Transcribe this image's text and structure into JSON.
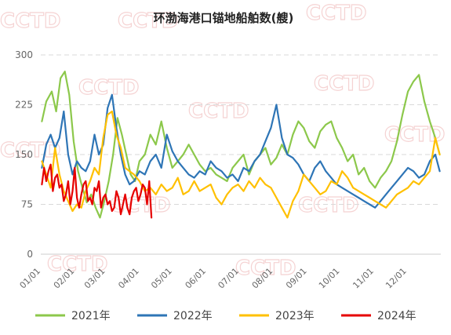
{
  "chart_data": {
    "type": "line",
    "title": "环渤海港口锚地船舶数(艘)",
    "watermark": "CCTD",
    "y_ticks": [
      0,
      75,
      150,
      225,
      300
    ],
    "ylim": [
      0,
      300
    ],
    "x_ticks": [
      "01/01",
      "02/01",
      "03/01",
      "04/01",
      "05/01",
      "06/01",
      "07/01",
      "08/01",
      "09/01",
      "10/01",
      "11/01",
      "12/01"
    ],
    "xlim_days": [
      0,
      365
    ],
    "grid": true,
    "legend_position": "bottom",
    "series": [
      {
        "name": "2021年",
        "color": "#8cc84b",
        "x": [
          1,
          5,
          10,
          14,
          18,
          22,
          26,
          30,
          34,
          38,
          42,
          46,
          50,
          54,
          58,
          62,
          66,
          70,
          74,
          78,
          82,
          86,
          90,
          95,
          100,
          105,
          110,
          115,
          120,
          125,
          130,
          135,
          140,
          145,
          150,
          155,
          160,
          165,
          170,
          175,
          180,
          185,
          190,
          195,
          200,
          205,
          210,
          215,
          220,
          225,
          230,
          235,
          240,
          245,
          250,
          255,
          260,
          265,
          270,
          275,
          280,
          285,
          290,
          295,
          300,
          305,
          310,
          315,
          320,
          325,
          330,
          335,
          340,
          345,
          350,
          355,
          360,
          364
        ],
        "y": [
          200,
          230,
          245,
          215,
          265,
          275,
          240,
          170,
          125,
          100,
          78,
          90,
          70,
          55,
          80,
          110,
          150,
          205,
          180,
          150,
          120,
          110,
          140,
          150,
          180,
          165,
          200,
          160,
          130,
          140,
          150,
          165,
          150,
          135,
          125,
          130,
          120,
          115,
          110,
          130,
          140,
          150,
          120,
          140,
          150,
          160,
          135,
          145,
          165,
          150,
          180,
          200,
          190,
          170,
          160,
          185,
          195,
          200,
          175,
          160,
          140,
          150,
          120,
          130,
          110,
          100,
          115,
          125,
          140,
          170,
          210,
          245,
          260,
          270,
          230,
          200,
          175,
          150
        ]
      },
      {
        "name": "2022年",
        "color": "#2e75b6",
        "x": [
          1,
          5,
          9,
          13,
          17,
          21,
          25,
          29,
          33,
          37,
          41,
          45,
          49,
          53,
          57,
          61,
          65,
          69,
          73,
          77,
          81,
          85,
          90,
          95,
          100,
          105,
          110,
          115,
          120,
          125,
          130,
          135,
          140,
          145,
          150,
          155,
          160,
          165,
          170,
          175,
          180,
          185,
          190,
          195,
          200,
          205,
          210,
          215,
          220,
          225,
          230,
          235,
          240,
          245,
          250,
          255,
          260,
          265,
          270,
          275,
          280,
          285,
          290,
          295,
          300,
          305,
          310,
          315,
          320,
          325,
          330,
          335,
          340,
          345,
          350,
          355,
          360,
          364
        ],
        "y": [
          130,
          165,
          180,
          160,
          175,
          215,
          150,
          120,
          140,
          130,
          125,
          140,
          180,
          150,
          165,
          220,
          240,
          190,
          150,
          120,
          105,
          110,
          125,
          120,
          140,
          150,
          130,
          180,
          155,
          140,
          130,
          120,
          115,
          125,
          120,
          140,
          130,
          125,
          115,
          120,
          110,
          130,
          125,
          140,
          150,
          170,
          190,
          225,
          175,
          150,
          145,
          135,
          120,
          110,
          130,
          140,
          125,
          115,
          105,
          100,
          95,
          90,
          85,
          80,
          75,
          70,
          80,
          90,
          100,
          110,
          120,
          130,
          125,
          115,
          120,
          140,
          150,
          125
        ]
      },
      {
        "name": "2023年",
        "color": "#ffc000",
        "x": [
          1,
          5,
          9,
          13,
          17,
          21,
          25,
          29,
          33,
          37,
          41,
          45,
          49,
          53,
          57,
          61,
          65,
          69,
          73,
          77,
          81,
          85,
          90,
          95,
          100,
          105,
          110,
          115,
          120,
          125,
          130,
          135,
          140,
          145,
          150,
          155,
          160,
          165,
          170,
          175,
          180,
          185,
          190,
          195,
          200,
          205,
          210,
          215,
          220,
          225,
          230,
          235,
          240,
          245,
          250,
          255,
          260,
          265,
          270,
          275,
          280,
          285,
          290,
          295,
          300,
          305,
          310,
          315,
          320,
          325,
          330,
          335,
          340,
          345,
          350,
          355,
          360,
          364
        ],
        "y": [
          140,
          120,
          100,
          160,
          120,
          95,
          80,
          65,
          75,
          70,
          95,
          110,
          130,
          120,
          175,
          210,
          215,
          180,
          160,
          130,
          125,
          120,
          110,
          95,
          100,
          90,
          105,
          95,
          100,
          115,
          90,
          95,
          110,
          95,
          100,
          105,
          85,
          75,
          90,
          100,
          105,
          95,
          110,
          100,
          115,
          105,
          100,
          85,
          70,
          55,
          80,
          95,
          120,
          110,
          100,
          90,
          95,
          110,
          105,
          125,
          115,
          100,
          95,
          90,
          85,
          80,
          75,
          70,
          80,
          90,
          95,
          100,
          110,
          105,
          115,
          125,
          175,
          150
        ]
      },
      {
        "name": "2024年",
        "color": "#e60000",
        "x": [
          1,
          3,
          5,
          7,
          9,
          11,
          13,
          15,
          17,
          19,
          21,
          23,
          25,
          27,
          29,
          31,
          33,
          35,
          37,
          39,
          41,
          43,
          45,
          47,
          49,
          51,
          53,
          55,
          57,
          59,
          61,
          63,
          65,
          67,
          69,
          71,
          73,
          75,
          77,
          79,
          81,
          83,
          85,
          87,
          89,
          91,
          93,
          95,
          97,
          99,
          101
        ],
        "y": [
          105,
          130,
          110,
          125,
          135,
          95,
          115,
          120,
          100,
          105,
          80,
          90,
          110,
          75,
          95,
          130,
          85,
          70,
          90,
          105,
          110,
          80,
          85,
          75,
          100,
          95,
          110,
          70,
          85,
          90,
          75,
          80,
          65,
          70,
          95,
          85,
          60,
          75,
          90,
          70,
          60,
          85,
          95,
          100,
          80,
          90,
          105,
          100,
          75,
          110,
          55
        ]
      }
    ]
  }
}
